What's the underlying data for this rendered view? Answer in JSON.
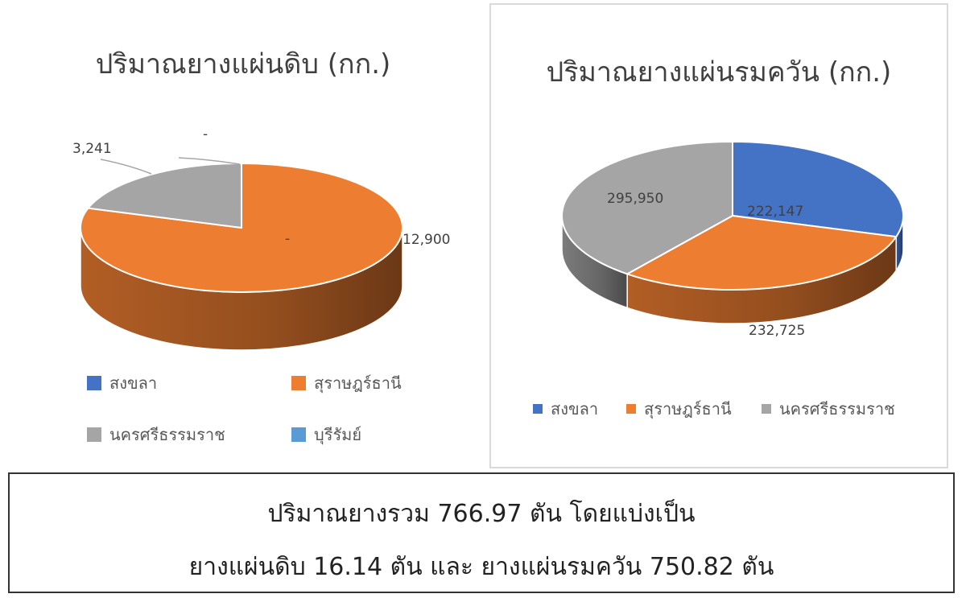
{
  "chart_data": [
    {
      "type": "pie",
      "title": "ปริมาณยางแผ่นดิบ (กก.)",
      "categories": [
        "สงขลา",
        "สุราษฎร์ธานี",
        "นครศรีธรรมราช",
        "บุรีรัมย์"
      ],
      "values": [
        0,
        12900,
        3241,
        0
      ],
      "data_labels": [
        "-",
        "12,900",
        "3,241",
        "-"
      ],
      "colors": [
        "#4472c4",
        "#ed7d31",
        "#a5a5a5",
        "#5b9bd5"
      ],
      "legend_position": "bottom"
    },
    {
      "type": "pie",
      "title": "ปริมาณยางแผ่นรมควัน (กก.)",
      "categories": [
        "สงขลา",
        "สุราษฎร์ธานี",
        "นครศรีธรรมราช"
      ],
      "values": [
        222147,
        232725,
        295950
      ],
      "data_labels": [
        "222,147",
        "232,725",
        "295,950"
      ],
      "colors": [
        "#4472c4",
        "#ed7d31",
        "#a5a5a5"
      ],
      "legend_position": "bottom"
    }
  ],
  "summary": {
    "line1": "ปริมาณยางรวม 766.97 ตัน โดยแบ่งเป็น",
    "line2": "ยางแผ่นดิบ 16.14 ตัน และ ยางแผ่นรมควัน 750.82 ตัน"
  }
}
